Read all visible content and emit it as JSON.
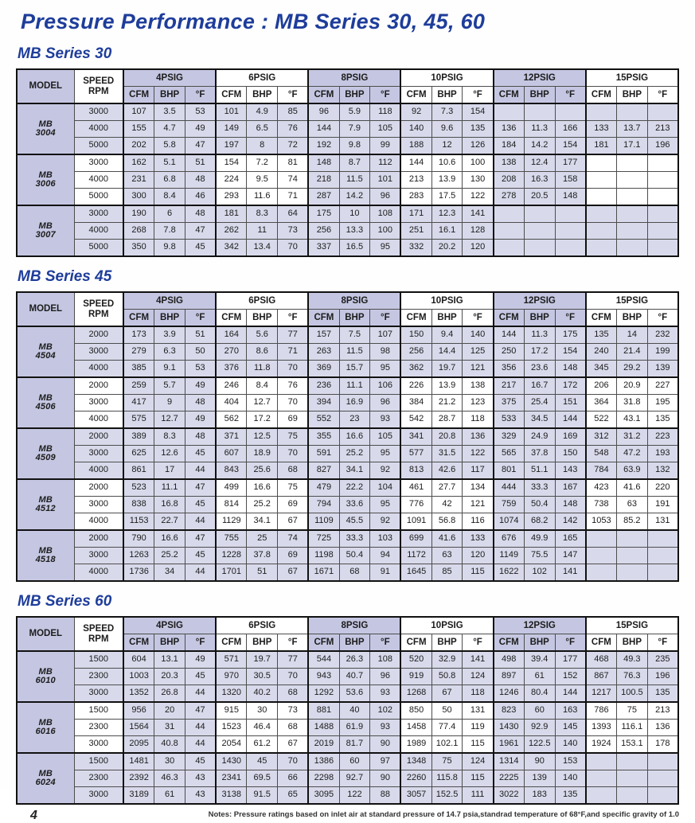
{
  "page": {
    "title": "Pressure Performance : MB Series 30, 45, 60",
    "page_number": "4",
    "footnote": "Notes: Pressure ratings based on inlet air at standard pressure of 14.7 psia,standrad temperature of 68°F,and specific gravity of 1.0"
  },
  "labels": {
    "model": "MODEL",
    "speed_line1": "SPEED",
    "speed_line2": "RPM",
    "groups": [
      "4PSIG",
      "6PSIG",
      "8PSIG",
      "10PSIG",
      "12PSIG",
      "15PSIG"
    ],
    "sub": [
      "CFM",
      "BHP",
      "°F"
    ]
  },
  "colors": {
    "heading_blue": "#1e3d9b",
    "header_lavender": "#c5c7e2",
    "cell_lavender": "#d8daeb",
    "grid_line": "#4d4d4d"
  },
  "tables": [
    {
      "heading": "MB Series 30",
      "models": [
        {
          "prefix": "MB",
          "name": "3004",
          "rows": [
            {
              "rpm": "3000",
              "cells": [
                "107",
                "3.5",
                "53",
                "101",
                "4.9",
                "85",
                "96",
                "5.9",
                "118",
                "92",
                "7.3",
                "154",
                "",
                "",
                "",
                "",
                "",
                ""
              ]
            },
            {
              "rpm": "4000",
              "cells": [
                "155",
                "4.7",
                "49",
                "149",
                "6.5",
                "76",
                "144",
                "7.9",
                "105",
                "140",
                "9.6",
                "135",
                "136",
                "11.3",
                "166",
                "133",
                "13.7",
                "213"
              ]
            },
            {
              "rpm": "5000",
              "cells": [
                "202",
                "5.8",
                "47",
                "197",
                "8",
                "72",
                "192",
                "9.8",
                "99",
                "188",
                "12",
                "126",
                "184",
                "14.2",
                "154",
                "181",
                "17.1",
                "196"
              ]
            }
          ]
        },
        {
          "prefix": "MB",
          "name": "3006",
          "rows": [
            {
              "rpm": "3000",
              "cells": [
                "162",
                "5.1",
                "51",
                "154",
                "7.2",
                "81",
                "148",
                "8.7",
                "112",
                "144",
                "10.6",
                "100",
                "138",
                "12.4",
                "177",
                "",
                "",
                ""
              ]
            },
            {
              "rpm": "4000",
              "cells": [
                "231",
                "6.8",
                "48",
                "224",
                "9.5",
                "74",
                "218",
                "11.5",
                "101",
                "213",
                "13.9",
                "130",
                "208",
                "16.3",
                "158",
                "",
                "",
                ""
              ]
            },
            {
              "rpm": "5000",
              "cells": [
                "300",
                "8.4",
                "46",
                "293",
                "11.6",
                "71",
                "287",
                "14.2",
                "96",
                "283",
                "17.5",
                "122",
                "278",
                "20.5",
                "148",
                "",
                "",
                ""
              ]
            }
          ]
        },
        {
          "prefix": "MB",
          "name": "3007",
          "rows": [
            {
              "rpm": "3000",
              "cells": [
                "190",
                "6",
                "48",
                "181",
                "8.3",
                "64",
                "175",
                "10",
                "108",
                "171",
                "12.3",
                "141",
                "",
                "",
                "",
                "",
                "",
                ""
              ]
            },
            {
              "rpm": "4000",
              "cells": [
                "268",
                "7.8",
                "47",
                "262",
                "11",
                "73",
                "256",
                "13.3",
                "100",
                "251",
                "16.1",
                "128",
                "",
                "",
                "",
                "",
                "",
                ""
              ]
            },
            {
              "rpm": "5000",
              "cells": [
                "350",
                "9.8",
                "45",
                "342",
                "13.4",
                "70",
                "337",
                "16.5",
                "95",
                "332",
                "20.2",
                "120",
                "",
                "",
                "",
                "",
                "",
                ""
              ]
            }
          ]
        }
      ]
    },
    {
      "heading": "MB Series 45",
      "models": [
        {
          "prefix": "MB",
          "name": "4504",
          "rows": [
            {
              "rpm": "2000",
              "cells": [
                "173",
                "3.9",
                "51",
                "164",
                "5.6",
                "77",
                "157",
                "7.5",
                "107",
                "150",
                "9.4",
                "140",
                "144",
                "11.3",
                "175",
                "135",
                "14",
                "232"
              ]
            },
            {
              "rpm": "3000",
              "cells": [
                "279",
                "6.3",
                "50",
                "270",
                "8.6",
                "71",
                "263",
                "11.5",
                "98",
                "256",
                "14.4",
                "125",
                "250",
                "17.2",
                "154",
                "240",
                "21.4",
                "199"
              ]
            },
            {
              "rpm": "4000",
              "cells": [
                "385",
                "9.1",
                "53",
                "376",
                "11.8",
                "70",
                "369",
                "15.7",
                "95",
                "362",
                "19.7",
                "121",
                "356",
                "23.6",
                "148",
                "345",
                "29.2",
                "139"
              ]
            }
          ]
        },
        {
          "prefix": "MB",
          "name": "4506",
          "rows": [
            {
              "rpm": "2000",
              "cells": [
                "259",
                "5.7",
                "49",
                "246",
                "8.4",
                "76",
                "236",
                "11.1",
                "106",
                "226",
                "13.9",
                "138",
                "217",
                "16.7",
                "172",
                "206",
                "20.9",
                "227"
              ]
            },
            {
              "rpm": "3000",
              "cells": [
                "417",
                "9",
                "48",
                "404",
                "12.7",
                "70",
                "394",
                "16.9",
                "96",
                "384",
                "21.2",
                "123",
                "375",
                "25.4",
                "151",
                "364",
                "31.8",
                "195"
              ]
            },
            {
              "rpm": "4000",
              "cells": [
                "575",
                "12.7",
                "49",
                "562",
                "17.2",
                "69",
                "552",
                "23",
                "93",
                "542",
                "28.7",
                "118",
                "533",
                "34.5",
                "144",
                "522",
                "43.1",
                "135"
              ]
            }
          ]
        },
        {
          "prefix": "MB",
          "name": "4509",
          "rows": [
            {
              "rpm": "2000",
              "cells": [
                "389",
                "8.3",
                "48",
                "371",
                "12.5",
                "75",
                "355",
                "16.6",
                "105",
                "341",
                "20.8",
                "136",
                "329",
                "24.9",
                "169",
                "312",
                "31.2",
                "223"
              ]
            },
            {
              "rpm": "3000",
              "cells": [
                "625",
                "12.6",
                "45",
                "607",
                "18.9",
                "70",
                "591",
                "25.2",
                "95",
                "577",
                "31.5",
                "122",
                "565",
                "37.8",
                "150",
                "548",
                "47.2",
                "193"
              ]
            },
            {
              "rpm": "4000",
              "cells": [
                "861",
                "17",
                "44",
                "843",
                "25.6",
                "68",
                "827",
                "34.1",
                "92",
                "813",
                "42.6",
                "117",
                "801",
                "51.1",
                "143",
                "784",
                "63.9",
                "132"
              ]
            }
          ]
        },
        {
          "prefix": "MB",
          "name": "4512",
          "rows": [
            {
              "rpm": "2000",
              "cells": [
                "523",
                "11.1",
                "47",
                "499",
                "16.6",
                "75",
                "479",
                "22.2",
                "104",
                "461",
                "27.7",
                "134",
                "444",
                "33.3",
                "167",
                "423",
                "41.6",
                "220"
              ]
            },
            {
              "rpm": "3000",
              "cells": [
                "838",
                "16.8",
                "45",
                "814",
                "25.2",
                "69",
                "794",
                "33.6",
                "95",
                "776",
                "42",
                "121",
                "759",
                "50.4",
                "148",
                "738",
                "63",
                "191"
              ]
            },
            {
              "rpm": "4000",
              "cells": [
                "1153",
                "22.7",
                "44",
                "1129",
                "34.1",
                "67",
                "1109",
                "45.5",
                "92",
                "1091",
                "56.8",
                "116",
                "1074",
                "68.2",
                "142",
                "1053",
                "85.2",
                "131"
              ]
            }
          ]
        },
        {
          "prefix": "MB",
          "name": "4518",
          "rows": [
            {
              "rpm": "2000",
              "cells": [
                "790",
                "16.6",
                "47",
                "755",
                "25",
                "74",
                "725",
                "33.3",
                "103",
                "699",
                "41.6",
                "133",
                "676",
                "49.9",
                "165",
                "",
                "",
                ""
              ]
            },
            {
              "rpm": "3000",
              "cells": [
                "1263",
                "25.2",
                "45",
                "1228",
                "37.8",
                "69",
                "1198",
                "50.4",
                "94",
                "1172",
                "63",
                "120",
                "1149",
                "75.5",
                "147",
                "",
                "",
                ""
              ]
            },
            {
              "rpm": "4000",
              "cells": [
                "1736",
                "34",
                "44",
                "1701",
                "51",
                "67",
                "1671",
                "68",
                "91",
                "1645",
                "85",
                "115",
                "1622",
                "102",
                "141",
                "",
                "",
                ""
              ]
            }
          ]
        }
      ]
    },
    {
      "heading": "MB Series 60",
      "models": [
        {
          "prefix": "MB",
          "name": "6010",
          "rows": [
            {
              "rpm": "1500",
              "cells": [
                "604",
                "13.1",
                "49",
                "571",
                "19.7",
                "77",
                "544",
                "26.3",
                "108",
                "520",
                "32.9",
                "141",
                "498",
                "39.4",
                "177",
                "468",
                "49.3",
                "235"
              ]
            },
            {
              "rpm": "2300",
              "cells": [
                "1003",
                "20.3",
                "45",
                "970",
                "30.5",
                "70",
                "943",
                "40.7",
                "96",
                "919",
                "50.8",
                "124",
                "897",
                "61",
                "152",
                "867",
                "76.3",
                "196"
              ]
            },
            {
              "rpm": "3000",
              "cells": [
                "1352",
                "26.8",
                "44",
                "1320",
                "40.2",
                "68",
                "1292",
                "53.6",
                "93",
                "1268",
                "67",
                "118",
                "1246",
                "80.4",
                "144",
                "1217",
                "100.5",
                "135"
              ]
            }
          ]
        },
        {
          "prefix": "MB",
          "name": "6016",
          "rows": [
            {
              "rpm": "1500",
              "cells": [
                "956",
                "20",
                "47",
                "915",
                "30",
                "73",
                "881",
                "40",
                "102",
                "850",
                "50",
                "131",
                "823",
                "60",
                "163",
                "786",
                "75",
                "213"
              ]
            },
            {
              "rpm": "2300",
              "cells": [
                "1564",
                "31",
                "44",
                "1523",
                "46.4",
                "68",
                "1488",
                "61.9",
                "93",
                "1458",
                "77.4",
                "119",
                "1430",
                "92.9",
                "145",
                "1393",
                "116.1",
                "136"
              ]
            },
            {
              "rpm": "3000",
              "cells": [
                "2095",
                "40.8",
                "44",
                "2054",
                "61.2",
                "67",
                "2019",
                "81.7",
                "90",
                "1989",
                "102.1",
                "115",
                "1961",
                "122.5",
                "140",
                "1924",
                "153.1",
                "178"
              ]
            }
          ]
        },
        {
          "prefix": "MB",
          "name": "6024",
          "rows": [
            {
              "rpm": "1500",
              "cells": [
                "1481",
                "30",
                "45",
                "1430",
                "45",
                "70",
                "1386",
                "60",
                "97",
                "1348",
                "75",
                "124",
                "1314",
                "90",
                "153",
                "",
                "",
                ""
              ]
            },
            {
              "rpm": "2300",
              "cells": [
                "2392",
                "46.3",
                "43",
                "2341",
                "69.5",
                "66",
                "2298",
                "92.7",
                "90",
                "2260",
                "115.8",
                "115",
                "2225",
                "139",
                "140",
                "",
                "",
                ""
              ]
            },
            {
              "rpm": "3000",
              "cells": [
                "3189",
                "61",
                "43",
                "3138",
                "91.5",
                "65",
                "3095",
                "122",
                "88",
                "3057",
                "152.5",
                "111",
                "3022",
                "183",
                "135",
                "",
                "",
                ""
              ]
            }
          ]
        }
      ]
    }
  ]
}
